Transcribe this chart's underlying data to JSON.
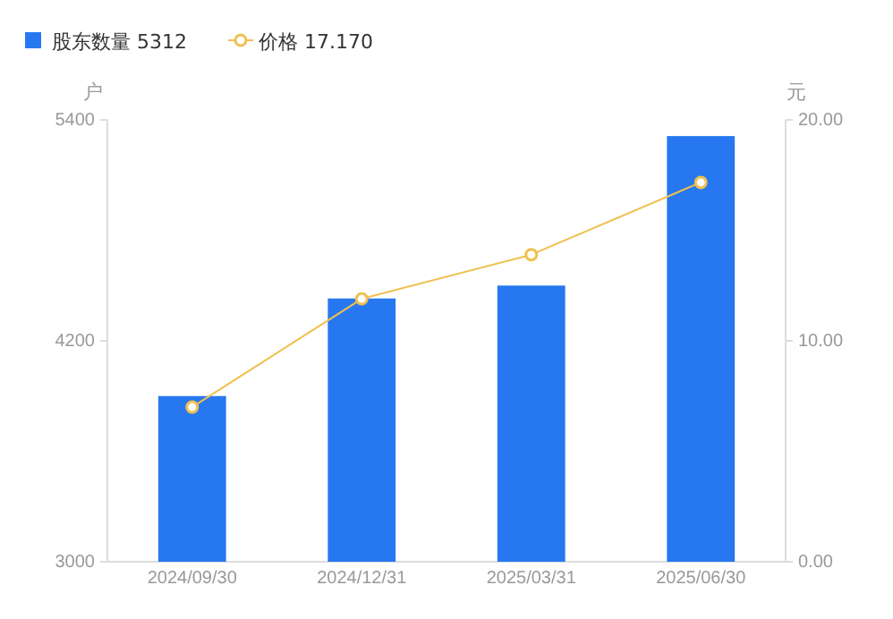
{
  "chart_data": {
    "type": "bar",
    "categories": [
      "2024/09/30",
      "2024/12/31",
      "2025/03/31",
      "2025/06/30"
    ],
    "series": [
      {
        "name": "股东数量 5312",
        "color": "#2778f0",
        "values": [
          3900,
          4430,
          4500,
          5312
        ]
      },
      {
        "name": "价格 17.170",
        "type": "line",
        "axis": "y2",
        "color": "#f0c050",
        "values": [
          7.0,
          11.9,
          13.9,
          17.17
        ]
      }
    ],
    "ylabel": "户",
    "y2label": "元",
    "ylim": [
      3000,
      5400
    ],
    "yticks": [
      3000,
      4200,
      5400
    ],
    "y2lim": [
      0,
      20
    ],
    "y2ticks": [
      {
        "value": 0,
        "label": "0.00"
      },
      {
        "value": 10,
        "label": "10.00"
      },
      {
        "value": 20,
        "label": "20.00"
      }
    ],
    "marker": "circle",
    "legend": "top left"
  }
}
